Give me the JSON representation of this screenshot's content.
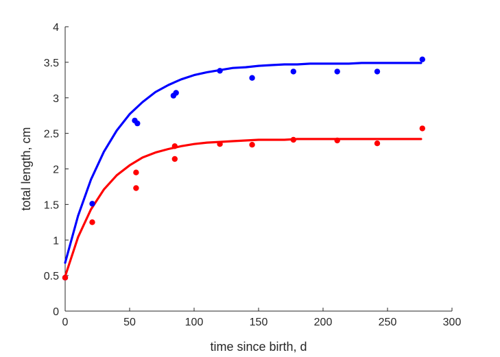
{
  "chart_data": {
    "type": "scatter",
    "title": "",
    "xlabel": "time since birth, d",
    "ylabel": "total length, cm",
    "xlim": [
      0,
      300
    ],
    "ylim": [
      0,
      4
    ],
    "xticks": [
      0,
      50,
      100,
      150,
      200,
      250,
      300
    ],
    "yticks": [
      0,
      0.5,
      1,
      1.5,
      2,
      2.5,
      3,
      3.5,
      4
    ],
    "grid": false,
    "legend": "none",
    "series": [
      {
        "color": "#0000ff",
        "points": {
          "x": [
            0,
            21,
            54,
            56,
            84,
            86,
            120,
            145,
            177,
            211,
            242,
            277
          ],
          "y": [
            0.47,
            1.51,
            2.68,
            2.64,
            3.03,
            3.07,
            3.38,
            3.28,
            3.37,
            3.37,
            3.37,
            3.54
          ]
        },
        "fit": {
          "x": [
            0,
            10,
            20,
            30,
            40,
            50,
            60,
            70,
            80,
            90,
            100,
            110,
            120,
            130,
            140,
            150,
            160,
            170,
            180,
            190,
            200,
            210,
            220,
            230,
            240,
            250,
            260,
            270,
            276
          ],
          "y": [
            0.68,
            1.34,
            1.85,
            2.24,
            2.54,
            2.77,
            2.94,
            3.08,
            3.18,
            3.26,
            3.32,
            3.36,
            3.39,
            3.42,
            3.43,
            3.45,
            3.46,
            3.47,
            3.47,
            3.48,
            3.48,
            3.48,
            3.48,
            3.49,
            3.49,
            3.49,
            3.49,
            3.49,
            3.49
          ]
        }
      },
      {
        "color": "#ff0000",
        "points": {
          "x": [
            0,
            21,
            55,
            55,
            85,
            85,
            120,
            145,
            177,
            211,
            242,
            277
          ],
          "y": [
            0.47,
            1.25,
            1.95,
            1.73,
            2.14,
            2.32,
            2.35,
            2.34,
            2.41,
            2.4,
            2.36,
            2.57
          ]
        },
        "fit": {
          "x": [
            0,
            10,
            20,
            30,
            40,
            50,
            60,
            70,
            80,
            90,
            100,
            110,
            120,
            130,
            140,
            150,
            160,
            170,
            180,
            190,
            200,
            210,
            220,
            230,
            240,
            250,
            260,
            270,
            276
          ],
          "y": [
            0.49,
            1.04,
            1.43,
            1.71,
            1.91,
            2.05,
            2.16,
            2.23,
            2.28,
            2.32,
            2.35,
            2.37,
            2.38,
            2.39,
            2.4,
            2.41,
            2.41,
            2.41,
            2.42,
            2.42,
            2.42,
            2.42,
            2.42,
            2.42,
            2.42,
            2.42,
            2.42,
            2.42,
            2.42
          ]
        }
      }
    ]
  }
}
